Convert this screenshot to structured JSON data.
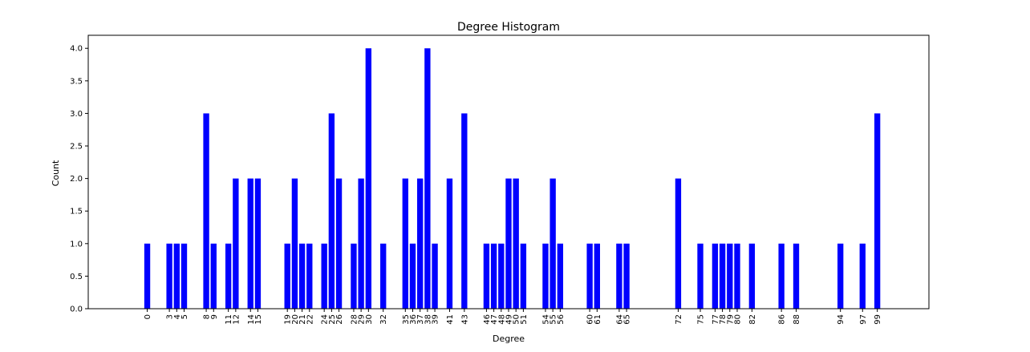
{
  "chart_data": {
    "type": "bar",
    "title": "Degree Histogram",
    "xlabel": "Degree",
    "ylabel": "Count",
    "ylim": [
      0,
      4.2
    ],
    "xlim": [
      -8,
      106
    ],
    "grid": false,
    "bar_color": "#0000ff",
    "y_ticks": [
      "0.0",
      "0.5",
      "1.0",
      "1.5",
      "2.0",
      "2.5",
      "3.0",
      "3.5",
      "4.0"
    ],
    "x": [
      0,
      3,
      4,
      5,
      8,
      9,
      11,
      12,
      14,
      15,
      19,
      20,
      21,
      22,
      24,
      25,
      26,
      28,
      29,
      30,
      32,
      35,
      36,
      37,
      38,
      39,
      41,
      43,
      46,
      47,
      48,
      49,
      50,
      51,
      54,
      55,
      56,
      60,
      61,
      64,
      65,
      72,
      75,
      77,
      78,
      79,
      80,
      82,
      86,
      88,
      94,
      97,
      99
    ],
    "values": [
      1,
      1,
      1,
      1,
      3,
      1,
      1,
      2,
      2,
      2,
      1,
      2,
      1,
      1,
      1,
      3,
      2,
      1,
      2,
      4,
      1,
      2,
      1,
      2,
      4,
      1,
      2,
      3,
      1,
      1,
      1,
      2,
      2,
      1,
      1,
      2,
      1,
      1,
      1,
      1,
      1,
      2,
      1,
      1,
      1,
      1,
      1,
      1,
      1,
      1,
      1,
      1,
      3
    ]
  }
}
